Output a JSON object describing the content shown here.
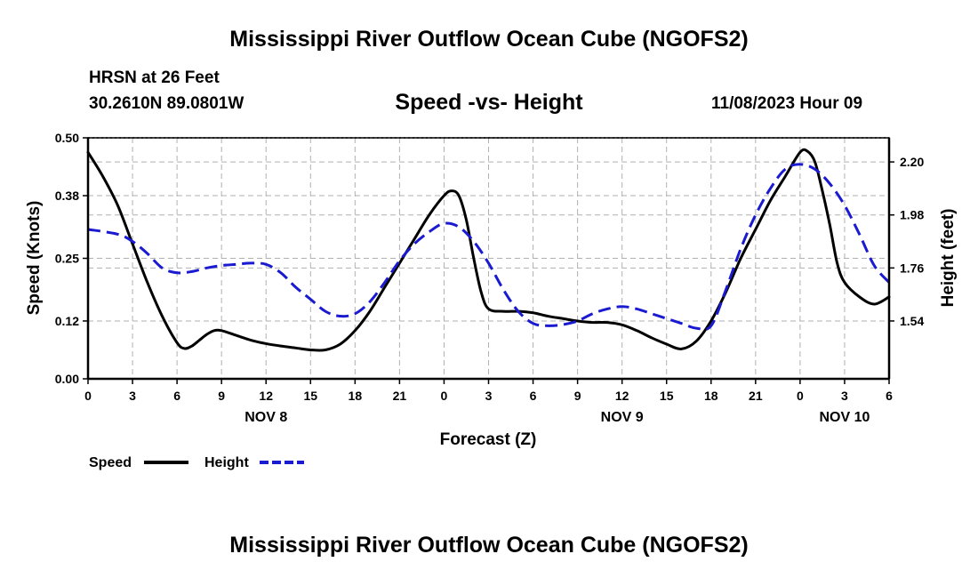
{
  "header": {
    "title": "Mississippi River Outflow Ocean Cube (NGOFS2)",
    "station": "HRSN at 26 Feet",
    "coords": "30.2610N  89.0801W",
    "datetime": "11/08/2023 Hour 09"
  },
  "footer": {
    "title": "Mississippi River Outflow Ocean Cube (NGOFS2)"
  },
  "chart_data": {
    "type": "line",
    "title": "Speed -vs- Height",
    "xlabel": "Forecast (Z)",
    "ylabel": "Speed (Knots)",
    "y2label": "Height (feet)",
    "xlim": [
      0,
      54
    ],
    "ylim": [
      0,
      0.5
    ],
    "y2lim": [
      1.3,
      2.3
    ],
    "grid": true,
    "x_ticks": [
      0,
      3,
      6,
      9,
      12,
      15,
      18,
      21,
      24,
      27,
      30,
      33,
      36,
      39,
      42,
      45,
      48,
      51,
      54
    ],
    "x_tick_labels": [
      "0",
      "3",
      "6",
      "9",
      "12",
      "15",
      "18",
      "21",
      "0",
      "3",
      "6",
      "9",
      "12",
      "15",
      "18",
      "21",
      "0",
      "3",
      "6"
    ],
    "date_labels": [
      {
        "x": 12,
        "label": "NOV 8"
      },
      {
        "x": 36,
        "label": "NOV 9"
      },
      {
        "x": 51,
        "label": "NOV 10"
      }
    ],
    "y_ticks": [
      0.0,
      0.12,
      0.25,
      0.38,
      0.5
    ],
    "y_tick_labels": [
      "0.00",
      "0.12",
      "0.25",
      "0.38",
      "0.50"
    ],
    "y2_ticks": [
      1.54,
      1.76,
      1.98,
      2.2
    ],
    "y2_tick_labels": [
      "1.54",
      "1.76",
      "1.98",
      "2.20"
    ],
    "legend": [
      {
        "name": "Speed",
        "color": "#000000",
        "dashed": false
      },
      {
        "name": "Height",
        "color": "#1a1ad0",
        "dashed": true
      }
    ],
    "series": [
      {
        "name": "Speed",
        "axis": "left",
        "color": "#000000",
        "x": [
          0,
          1,
          2,
          3,
          4,
          5,
          6,
          6.5,
          7,
          7.5,
          8,
          8.5,
          9,
          10,
          11,
          12,
          13,
          14,
          15,
          16,
          17,
          18,
          19,
          20,
          21,
          22,
          23,
          24,
          24.5,
          25,
          25.5,
          26,
          26.5,
          27,
          28,
          29,
          30,
          31,
          32,
          33,
          34,
          35,
          36,
          37,
          38,
          39,
          40,
          41,
          42,
          43,
          44,
          45,
          46,
          47,
          48,
          48.5,
          49,
          49.5,
          50,
          50.5,
          51,
          52,
          53,
          54
        ],
        "values": [
          0.47,
          0.42,
          0.36,
          0.28,
          0.2,
          0.13,
          0.075,
          0.063,
          0.068,
          0.08,
          0.092,
          0.1,
          0.1,
          0.09,
          0.08,
          0.073,
          0.068,
          0.064,
          0.06,
          0.06,
          0.072,
          0.1,
          0.14,
          0.19,
          0.24,
          0.29,
          0.34,
          0.38,
          0.39,
          0.38,
          0.33,
          0.25,
          0.18,
          0.145,
          0.14,
          0.14,
          0.137,
          0.13,
          0.125,
          0.12,
          0.117,
          0.117,
          0.112,
          0.1,
          0.085,
          0.072,
          0.062,
          0.078,
          0.12,
          0.18,
          0.25,
          0.31,
          0.37,
          0.42,
          0.47,
          0.472,
          0.45,
          0.39,
          0.32,
          0.24,
          0.2,
          0.17,
          0.155,
          0.17
        ]
      },
      {
        "name": "Height",
        "axis": "right",
        "color": "#1a1ad0",
        "x": [
          0,
          2,
          3,
          4,
          5,
          6,
          7,
          8,
          9,
          10,
          11,
          12,
          13,
          14,
          15,
          16,
          17,
          18,
          19,
          20,
          21,
          22,
          23,
          24,
          25,
          26,
          27,
          28,
          29,
          30,
          31,
          32,
          33,
          34,
          35,
          36,
          37,
          38,
          39,
          40,
          41,
          42,
          43,
          44,
          45,
          46,
          47,
          48,
          49,
          50,
          51,
          52,
          53,
          54
        ],
        "values": [
          1.92,
          1.9,
          1.87,
          1.82,
          1.76,
          1.74,
          1.745,
          1.76,
          1.77,
          1.775,
          1.78,
          1.775,
          1.74,
          1.68,
          1.63,
          1.58,
          1.56,
          1.57,
          1.62,
          1.7,
          1.79,
          1.86,
          1.91,
          1.945,
          1.93,
          1.87,
          1.78,
          1.67,
          1.58,
          1.53,
          1.52,
          1.525,
          1.54,
          1.57,
          1.59,
          1.6,
          1.59,
          1.57,
          1.55,
          1.53,
          1.51,
          1.52,
          1.67,
          1.84,
          1.98,
          2.09,
          2.17,
          2.19,
          2.17,
          2.11,
          2.02,
          1.9,
          1.77,
          1.7
        ]
      }
    ]
  }
}
